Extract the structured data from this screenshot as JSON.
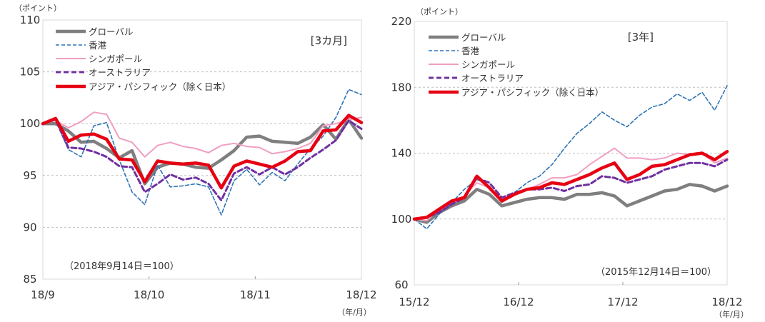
{
  "charts": [
    {
      "id": "left",
      "y_unit_label": "（ポイント）",
      "period_label": "[3カ月]",
      "base_note": "（2018年9月14日＝100）",
      "x_unit_label": "（年/月）"
    },
    {
      "id": "right",
      "y_unit_label": "（ポイント）",
      "period_label": "[3年]",
      "base_note": "（2015年12月14日＝100）",
      "x_unit_label": "（年/月）"
    }
  ],
  "legend": [
    {
      "name": "グローバル",
      "color": "#7f7f7f",
      "style": "solid-thick"
    },
    {
      "name": "香港",
      "color": "#2e75b6",
      "style": "dashed"
    },
    {
      "name": "シンガポール",
      "color": "#f19ec2",
      "style": "solid"
    },
    {
      "name": "オーストラリア",
      "color": "#7030a0",
      "style": "dashed-thick"
    },
    {
      "name": "アジア・パシフィック（除く日本）",
      "color": "#e60012",
      "style": "solid-thick"
    }
  ],
  "chart_data": [
    {
      "type": "line",
      "y_ticks": [
        "85",
        "90",
        "95",
        "100",
        "105",
        "110"
      ],
      "ylim": [
        85,
        110
      ],
      "x_ticks": [
        "18/9",
        "18/10",
        "18/11",
        "18/12"
      ],
      "x": [
        0,
        4,
        8,
        12,
        16,
        20,
        24,
        28,
        32,
        36,
        40,
        44,
        48,
        52,
        56,
        60,
        64,
        68,
        72,
        76,
        80,
        84,
        88,
        92,
        96,
        100
      ],
      "series": [
        {
          "name": "グローバル",
          "color": "#7f7f7f",
          "width": 4.5,
          "dash": "",
          "values": [
            100,
            100,
            99.3,
            98.2,
            98.3,
            97.6,
            96.7,
            97.4,
            94.2,
            95.8,
            96.2,
            96.1,
            95.8,
            95.7,
            96.5,
            97.4,
            98.7,
            98.8,
            98.3,
            98.2,
            98.1,
            98.7,
            99.9,
            98.5,
            100.4,
            98.6
          ]
        },
        {
          "name": "香港",
          "color": "#2e75b6",
          "width": 1.6,
          "dash": "5,3",
          "values": [
            100,
            100.3,
            97.5,
            96.8,
            99.8,
            100.1,
            96.5,
            93.4,
            92.2,
            96,
            93.9,
            94,
            94.2,
            93.9,
            91.2,
            94.5,
            95.6,
            94.1,
            95.3,
            94.5,
            96.1,
            97.6,
            98.8,
            100.6,
            103.3,
            102.8
          ]
        },
        {
          "name": "シンガポール",
          "color": "#f19ec2",
          "width": 2,
          "dash": "",
          "values": [
            100,
            100.3,
            99.6,
            100.2,
            101.1,
            100.9,
            98.6,
            98.2,
            96.8,
            97.9,
            98.2,
            97.8,
            97.6,
            97.2,
            97.9,
            98.1,
            97.8,
            97.7,
            97.1,
            97.3,
            97.6,
            98.1,
            99.8,
            100,
            100.4,
            100.6
          ]
        },
        {
          "name": "オーストラリア",
          "color": "#7030a0",
          "width": 3,
          "dash": "7,4",
          "values": [
            100,
            100.4,
            97.7,
            97.6,
            97.3,
            96.8,
            95.9,
            95.8,
            93.4,
            94.2,
            95.1,
            94.6,
            94.8,
            94.2,
            92.6,
            95.2,
            95.8,
            95.1,
            95.8,
            95.1,
            95.8,
            96.7,
            97.5,
            98.4,
            100.3,
            99.5
          ]
        },
        {
          "name": "アジア・パシフィック（除く日本）",
          "color": "#e60012",
          "width": 4.5,
          "dash": "",
          "values": [
            100,
            100.5,
            98.3,
            98.9,
            99,
            98.5,
            96.6,
            96.5,
            94.4,
            96.4,
            96.2,
            96.1,
            96.2,
            96,
            93.8,
            95.9,
            96.4,
            96.1,
            95.8,
            96.4,
            97.3,
            97.4,
            99.3,
            99.4,
            100.8,
            100.1
          ]
        }
      ]
    },
    {
      "type": "line",
      "y_ticks": [
        "60",
        "100",
        "140",
        "180",
        "220"
      ],
      "ylim": [
        60,
        220
      ],
      "x_ticks": [
        "15/12",
        "16/12",
        "17/12",
        "18/12"
      ],
      "x": [
        0,
        4,
        8,
        12,
        16,
        20,
        24,
        28,
        32,
        36,
        40,
        44,
        48,
        52,
        56,
        60,
        64,
        68,
        72,
        76,
        80,
        84,
        88,
        92,
        96,
        100
      ],
      "series": [
        {
          "name": "グローバル",
          "color": "#7f7f7f",
          "width": 4.5,
          "dash": "",
          "values": [
            100,
            98,
            104,
            108,
            111,
            118,
            115,
            108,
            110,
            112,
            113,
            113,
            112,
            115,
            115,
            116,
            114,
            108,
            111,
            114,
            117,
            118,
            121,
            120,
            117,
            120
          ]
        },
        {
          "name": "香港",
          "color": "#2e75b6",
          "width": 1.6,
          "dash": "5,3",
          "values": [
            100,
            94,
            103,
            110,
            118,
            124,
            120,
            110,
            116,
            122,
            126,
            133,
            143,
            152,
            158,
            165,
            160,
            156,
            163,
            168,
            170,
            176,
            172,
            177,
            166,
            181
          ]
        },
        {
          "name": "シンガポール",
          "color": "#f19ec2",
          "width": 2,
          "dash": "",
          "values": [
            100,
            99,
            106,
            111,
            114,
            122,
            119,
            110,
            115,
            118,
            121,
            125,
            125,
            127,
            133,
            138,
            143,
            137,
            137,
            136,
            137,
            140,
            139,
            140,
            134,
            137
          ]
        },
        {
          "name": "オーストラリア",
          "color": "#7030a0",
          "width": 3,
          "dash": "7,4",
          "values": [
            100,
            101,
            104,
            109,
            113,
            125,
            122,
            113,
            116,
            118,
            118,
            119,
            117,
            120,
            121,
            126,
            125,
            122,
            124,
            126,
            130,
            132,
            134,
            134,
            132,
            136
          ]
        },
        {
          "name": "アジア・パシフィック（除く日本）",
          "color": "#e60012",
          "width": 4.5,
          "dash": "",
          "values": [
            100,
            101,
            106,
            111,
            113,
            126,
            119,
            111,
            115,
            118,
            119,
            122,
            121,
            124,
            127,
            131,
            134,
            124,
            127,
            132,
            133,
            136,
            139,
            140,
            136,
            141
          ]
        }
      ]
    }
  ]
}
